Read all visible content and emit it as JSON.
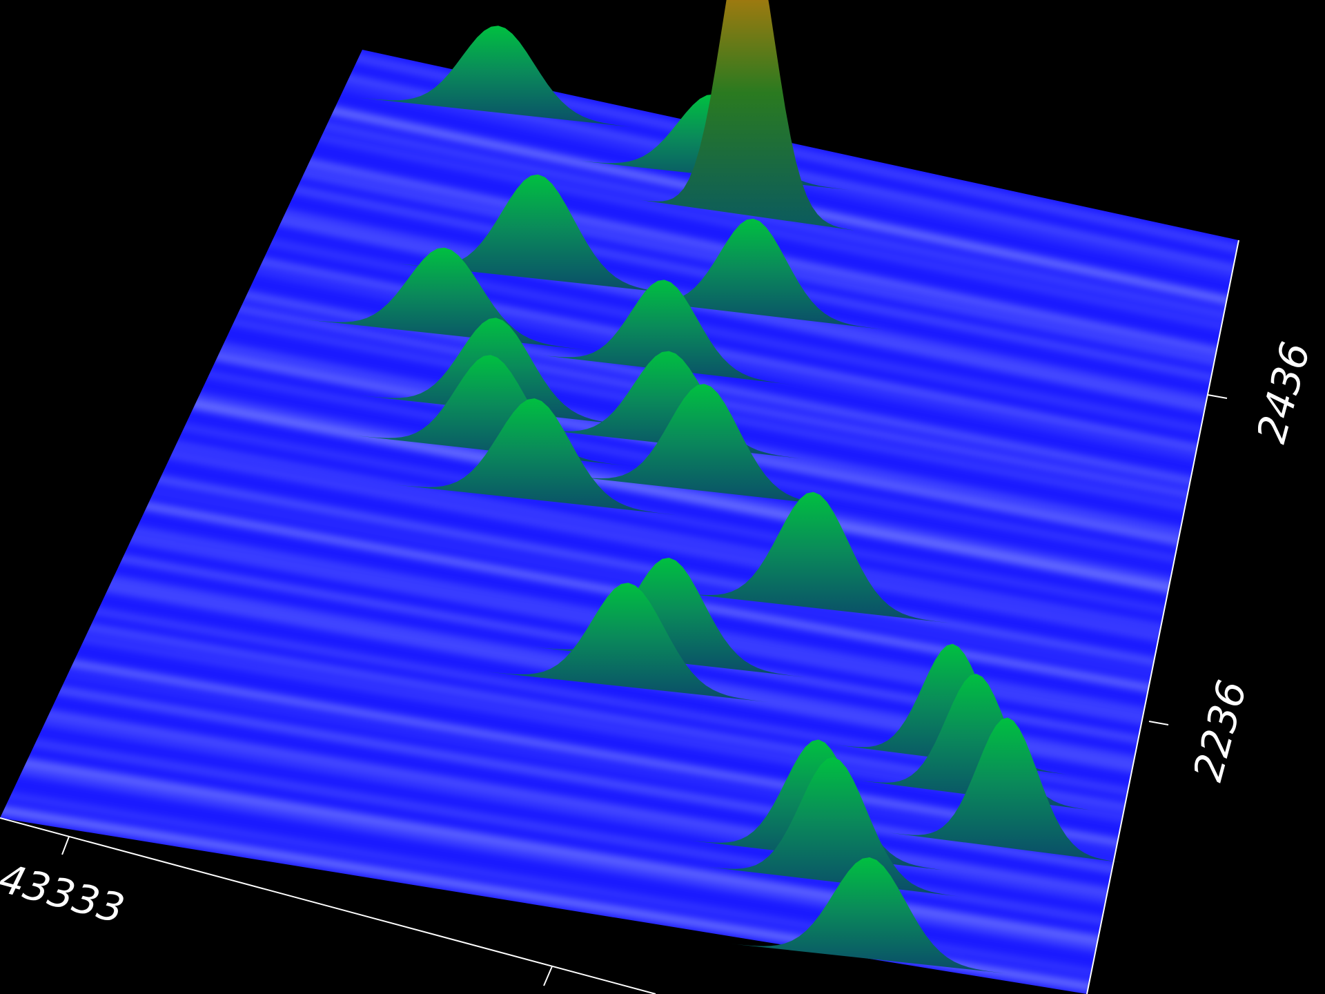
{
  "chart_data": {
    "type": "surface3d",
    "title": "",
    "colormap": {
      "low": "#1a1aff",
      "streak_highlight": "#c8d8ff",
      "mid": "#0a8a5a",
      "high": "#00c040",
      "peak": "#ff2000"
    },
    "background": "#000000",
    "x_axis": {
      "ticks": [
        {
          "label": "43333"
        }
      ]
    },
    "y_axis": {
      "ticks": [
        {
          "label": "2436"
        },
        {
          "label": "2236"
        }
      ]
    },
    "grid": false,
    "legend": "none",
    "peaks": [
      {
        "u": 0.17,
        "v": 0.04,
        "height": 0.3,
        "spread": 0.05
      },
      {
        "u": 0.42,
        "v": 0.06,
        "height": 0.28,
        "spread": 0.05
      },
      {
        "u": 0.47,
        "v": 0.1,
        "height": 1.0,
        "spread": 0.035
      },
      {
        "u": 0.51,
        "v": 0.22,
        "height": 0.33,
        "spread": 0.045
      },
      {
        "u": 0.28,
        "v": 0.23,
        "height": 0.36,
        "spread": 0.05
      },
      {
        "u": 0.44,
        "v": 0.31,
        "height": 0.31,
        "spread": 0.045
      },
      {
        "u": 0.21,
        "v": 0.32,
        "height": 0.3,
        "spread": 0.05
      },
      {
        "u": 0.29,
        "v": 0.4,
        "height": 0.32,
        "spread": 0.048
      },
      {
        "u": 0.47,
        "v": 0.4,
        "height": 0.32,
        "spread": 0.048
      },
      {
        "u": 0.3,
        "v": 0.45,
        "height": 0.33,
        "spread": 0.048
      },
      {
        "u": 0.52,
        "v": 0.45,
        "height": 0.37,
        "spread": 0.048
      },
      {
        "u": 0.36,
        "v": 0.5,
        "height": 0.35,
        "spread": 0.05
      },
      {
        "u": 0.66,
        "v": 0.57,
        "height": 0.4,
        "spread": 0.048
      },
      {
        "u": 0.54,
        "v": 0.67,
        "height": 0.36,
        "spread": 0.048
      },
      {
        "u": 0.51,
        "v": 0.71,
        "height": 0.36,
        "spread": 0.05
      },
      {
        "u": 0.83,
        "v": 0.73,
        "height": 0.4,
        "spread": 0.04
      },
      {
        "u": 0.86,
        "v": 0.77,
        "height": 0.42,
        "spread": 0.04
      },
      {
        "u": 0.9,
        "v": 0.83,
        "height": 0.45,
        "spread": 0.04
      },
      {
        "u": 0.73,
        "v": 0.88,
        "height": 0.4,
        "spread": 0.045
      },
      {
        "u": 0.75,
        "v": 0.91,
        "height": 0.43,
        "spread": 0.045
      },
      {
        "u": 0.8,
        "v": 1.0,
        "height": 0.35,
        "spread": 0.05
      }
    ]
  }
}
